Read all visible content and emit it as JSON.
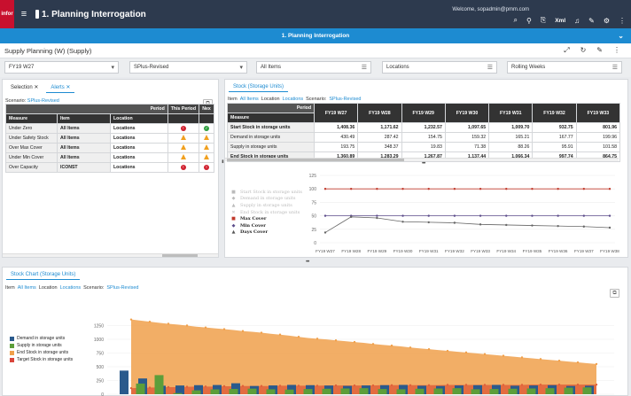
{
  "app": {
    "logo": "infor",
    "title": "1. Planning Interrogation",
    "welcome": "Welcome, sopadmin@pmm.com",
    "xml_label": "Xml"
  },
  "tabbar": {
    "active_tab": "1. Planning Interrogation"
  },
  "page": {
    "title": "Supply Planning (W) (Supply)"
  },
  "filters": [
    {
      "value": "FY19 W27",
      "icon": "chevron-down-icon"
    },
    {
      "value": "SPlus-Revised",
      "icon": "chevron-down-icon"
    },
    {
      "value": "All Items",
      "icon": "filter-list-icon"
    },
    {
      "value": "Locations",
      "icon": "filter-list-icon"
    },
    {
      "value": "Rolling Weeks",
      "icon": "filter-list-icon"
    }
  ],
  "alerts_panel": {
    "tabs": [
      {
        "label": "Selection"
      },
      {
        "label": "Alerts"
      }
    ],
    "scenario_label": "Scenario:",
    "scenario_value": "SPlus-Revised",
    "period_label": "Period",
    "columns": [
      "Measure",
      "Item",
      "Location",
      "This Period",
      "Nex"
    ],
    "rows": [
      {
        "measure": "Under Zero",
        "item": "All Items",
        "location": "Locations",
        "this": "red",
        "next": "green"
      },
      {
        "measure": "Under Safety Stock",
        "item": "All Items",
        "location": "Locations",
        "this": "warn",
        "next": "warn"
      },
      {
        "measure": "Over Max Cover",
        "item": "All Items",
        "location": "Locations",
        "this": "warn",
        "next": "warn"
      },
      {
        "measure": "Under Min Cover",
        "item": "All Items",
        "location": "Locations",
        "this": "warn",
        "next": "warn"
      },
      {
        "measure": "Over Capacity",
        "item": "ICONST",
        "location": "Locations",
        "this": "red",
        "next": "red"
      }
    ]
  },
  "stock_panel": {
    "tab": "Stock (Storage Units)",
    "filter_row": {
      "item_label": "Item",
      "item_value": "All Items",
      "location_label": "Location",
      "location_value": "Locations",
      "scenario_label": "Scenario:",
      "scenario_value": "SPlus-Revised"
    },
    "period_label": "Period",
    "measure_label": "Measure",
    "periods": [
      "FY19 W27",
      "FY19 W28",
      "FY19 W29",
      "FY19 W30",
      "FY19 W31",
      "FY19 W32",
      "FY19 W33"
    ],
    "rows": [
      {
        "label": "Start Stock in storage units",
        "bold": true,
        "values": [
          "1,408.36",
          "1,171.62",
          "1,232.57",
          "1,097.65",
          "1,009.70",
          "932.75",
          "801.96"
        ]
      },
      {
        "label": "Demand in storage units",
        "bold": false,
        "values": [
          "430.49",
          "287.42",
          "154.75",
          "159.32",
          "165.21",
          "167.77",
          "199.96"
        ]
      },
      {
        "label": "Supply in storage units",
        "bold": false,
        "values": [
          "193.75",
          "348.37",
          "19.83",
          "71.38",
          "88.26",
          "95.91",
          "101.58"
        ]
      },
      {
        "label": "End Stock in storage units",
        "bold": true,
        "values": [
          "1,360.89",
          "1,283.29",
          "1,267.87",
          "1,137.44",
          "1,066.34",
          "997.74",
          "864.75"
        ]
      }
    ]
  },
  "cover_chart": {
    "legend": [
      {
        "label": "Start Stock in storage units",
        "marker": "■",
        "color": "#bbbbbb",
        "active": false
      },
      {
        "label": "Demand in storage units",
        "marker": "◆",
        "color": "#bbbbbb",
        "active": false
      },
      {
        "label": "Supply in storage units",
        "marker": "▲",
        "color": "#bbbbbb",
        "active": false
      },
      {
        "label": "End Stock in storage units",
        "marker": "✕",
        "color": "#bbbbbb",
        "active": false
      },
      {
        "label": "Max Cover",
        "marker": "■",
        "color": "#c0392b",
        "active": true
      },
      {
        "label": "Min Cover",
        "marker": "◆",
        "color": "#5b4b8a",
        "active": true
      },
      {
        "label": "Days Cover",
        "marker": "▲",
        "color": "#555555",
        "active": true
      }
    ]
  },
  "stock_chart_panel": {
    "tab": "Stock Chart (Storage Units)",
    "filter_row": {
      "item_label": "Item",
      "item_value": "All Items",
      "location_label": "Location",
      "location_value": "Locations",
      "scenario_label": "Scenario:",
      "scenario_value": "SPlus-Revised"
    },
    "legend": [
      {
        "label": "Demand in storage units",
        "color": "#2a5a8c"
      },
      {
        "label": "Supply in storage units",
        "color": "#5c9e3a"
      },
      {
        "label": "End Stock in storage units",
        "color": "#f0a04b"
      },
      {
        "label": "Target Stock in storage units",
        "color": "#d9453b"
      }
    ]
  },
  "chart_data": [
    {
      "type": "line",
      "x": [
        "FY19 W27",
        "FY19 W28",
        "FY19 W29",
        "FY19 W30",
        "FY19 W31",
        "FY19 W32",
        "FY19 W33",
        "FY19 W34",
        "FY19 W35",
        "FY19 W36",
        "FY19 W37",
        "FY19 W38"
      ],
      "ylim": [
        0,
        125
      ],
      "yticks": [
        0,
        25,
        50,
        75,
        100,
        125
      ],
      "series": [
        {
          "name": "Max Cover",
          "values": [
            100,
            100,
            100,
            100,
            100,
            100,
            100,
            100,
            100,
            100,
            100,
            100
          ],
          "color": "#c0392b"
        },
        {
          "name": "Min Cover",
          "values": [
            50,
            50,
            50,
            50,
            50,
            50,
            50,
            50,
            50,
            50,
            50,
            50
          ],
          "color": "#5b4b8a"
        },
        {
          "name": "Days Cover",
          "values": [
            19,
            48,
            46,
            39,
            38,
            37,
            34,
            33,
            32,
            31,
            30,
            28
          ],
          "color": "#666666"
        }
      ]
    },
    {
      "type": "area",
      "ylim": [
        0,
        1500
      ],
      "yticks": [
        0,
        250,
        500,
        750,
        1000,
        1250
      ],
      "series": [
        {
          "name": "End Stock in storage units",
          "type": "area",
          "color": "#f0a04b",
          "values": [
            1360,
            1340,
            1320,
            1300,
            1283,
            1268,
            1250,
            1230,
            1215,
            1200,
            1185,
            1170,
            1150,
            1137,
            1120,
            1100,
            1085,
            1066,
            1045,
            1025,
            1010,
            997,
            980,
            965,
            950,
            935,
            915,
            900,
            885,
            870,
            850,
            835,
            820,
            805,
            790,
            775,
            760,
            745,
            730,
            715,
            700,
            685,
            670,
            655,
            640,
            625,
            610,
            595,
            580,
            565,
            550
          ]
        },
        {
          "name": "Target Stock in storage units",
          "type": "area",
          "color": "#e0603a",
          "values": [
            110,
            115,
            120,
            125,
            130,
            130,
            135,
            140,
            140,
            140,
            145,
            145,
            150,
            150,
            150,
            150,
            155,
            155,
            155,
            155,
            155,
            160,
            160,
            160,
            160,
            160,
            160,
            165,
            165,
            165,
            165,
            165,
            165,
            165,
            170,
            170,
            170,
            170,
            170,
            170,
            170,
            170,
            170,
            175,
            175,
            175,
            175,
            175,
            175,
            175,
            175
          ]
        },
        {
          "name": "Demand in storage units",
          "type": "bar",
          "color": "#2a5a8c",
          "values": [
            430,
            0,
            287,
            0,
            155,
            0,
            159,
            0,
            165,
            0,
            168,
            0,
            200,
            0,
            150,
            0,
            160,
            0,
            170,
            0,
            165,
            0,
            158,
            0,
            152,
            0,
            160,
            0,
            165,
            0,
            170,
            0,
            155,
            0,
            150,
            0,
            160,
            0,
            165,
            0,
            170,
            0,
            155,
            0,
            160,
            0,
            165,
            0,
            150,
            0,
            155
          ]
        },
        {
          "name": "Supply in storage units",
          "type": "bar",
          "color": "#5c9e3a",
          "values": [
            0,
            194,
            0,
            348,
            0,
            20,
            0,
            71,
            0,
            88,
            0,
            96,
            0,
            102,
            0,
            90,
            0,
            85,
            0,
            95,
            0,
            100,
            0,
            105,
            0,
            110,
            0,
            95,
            0,
            90,
            0,
            100,
            0,
            105,
            0,
            110,
            0,
            90,
            0,
            95,
            0,
            100,
            0,
            105,
            0,
            110,
            0,
            120,
            0,
            125,
            0
          ]
        }
      ]
    }
  ]
}
